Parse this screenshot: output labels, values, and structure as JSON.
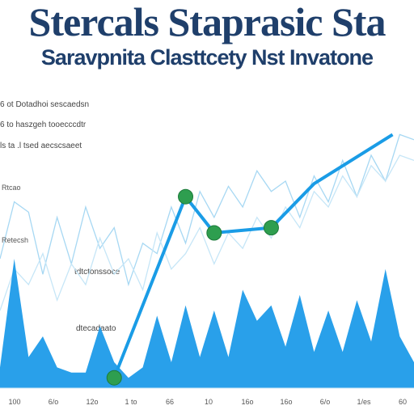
{
  "header": {
    "title": "Stercals Staprasic Sta",
    "subtitle": "Saravpnita Clasttcety Nst Invatone"
  },
  "notes": [
    "6  ot  Dotadhoi  sescaedsn",
    "6  to  haszgeh  tooecccdtr",
    "ls  ta  .l  tsed  aecscsaeet",
    "Rtcao",
    "Retecsh",
    "tdtctonssoce",
    "dtecadaato"
  ],
  "chart_data": {
    "type": "area",
    "x": [
      0,
      1,
      2,
      3,
      4,
      5,
      6,
      7,
      8,
      9,
      10,
      11,
      12,
      13,
      14,
      15,
      16,
      17,
      18,
      19,
      20,
      21,
      22,
      23,
      24,
      25,
      26,
      27,
      28,
      29
    ],
    "xlim": [
      0,
      29
    ],
    "ylim": [
      0,
      100
    ],
    "series": [
      {
        "kind": "area",
        "color": "#1e9be9",
        "values": [
          8,
          50,
          12,
          20,
          8,
          6,
          6,
          24,
          10,
          4,
          8,
          28,
          10,
          32,
          12,
          30,
          12,
          38,
          26,
          32,
          16,
          36,
          14,
          30,
          14,
          34,
          18,
          46,
          20,
          10
        ]
      },
      {
        "kind": "line",
        "color": "#a7d8f3",
        "values": [
          50,
          72,
          68,
          44,
          66,
          48,
          70,
          54,
          62,
          40,
          56,
          52,
          70,
          56,
          76,
          66,
          78,
          70,
          84,
          76,
          80,
          66,
          82,
          72,
          88,
          74,
          90,
          80,
          98,
          96
        ]
      },
      {
        "kind": "line",
        "color": "#c6e6f7",
        "values": [
          30,
          46,
          40,
          52,
          34,
          48,
          40,
          58,
          44,
          50,
          38,
          60,
          46,
          52,
          62,
          48,
          60,
          54,
          66,
          58,
          70,
          62,
          76,
          70,
          82,
          74,
          86,
          80,
          90,
          88
        ]
      }
    ],
    "trend": {
      "color": "#1a9ce6",
      "marker_color": "#2e9e4f",
      "points": [
        [
          8,
          4
        ],
        [
          13,
          74
        ],
        [
          15,
          60
        ],
        [
          19,
          62
        ],
        [
          22,
          79
        ],
        [
          27.5,
          98
        ]
      ],
      "markers": [
        [
          8,
          4
        ],
        [
          13,
          74
        ],
        [
          15,
          60
        ],
        [
          19,
          62
        ]
      ]
    },
    "ytick_labels": [
      "Rtcao",
      "Retecsh"
    ],
    "xtick_labels": [
      "100",
      "6/o",
      "12o",
      "1 to",
      "66",
      "10",
      "16o",
      "16o",
      "6/o",
      "1/es",
      "60"
    ],
    "grid": false
  }
}
